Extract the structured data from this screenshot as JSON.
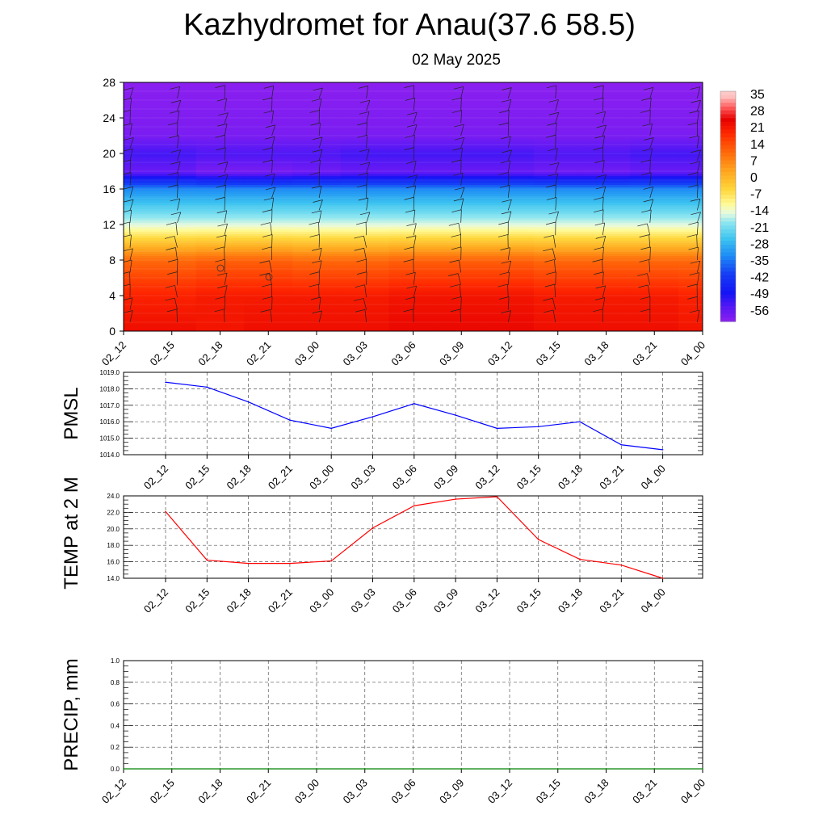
{
  "header": {
    "title": "Kazhydromet for Anau(37.6 58.5)",
    "date": "02 May 2025"
  },
  "chart_data": [
    {
      "type": "heatmap",
      "title": "",
      "x_categories": [
        "02_12",
        "02_15",
        "02_18",
        "02_21",
        "03_00",
        "03_03",
        "03_06",
        "03_09",
        "03_12",
        "03_15",
        "03_18",
        "03_21",
        "04_00"
      ],
      "y_ticks": [
        0,
        4,
        8,
        12,
        16,
        20,
        24,
        28
      ],
      "ylim": [
        0,
        28
      ],
      "colorbar": {
        "labels": [
          "35",
          "28",
          "21",
          "14",
          "7",
          "0",
          "-7",
          "-14",
          "-21",
          "-28",
          "-35",
          "-42",
          "-49",
          "-56"
        ],
        "range": [
          -60,
          38
        ]
      },
      "level_values": [
        {
          "level": 0,
          "values": [
            24,
            24,
            23,
            24,
            24,
            24,
            25,
            25,
            25,
            24,
            24,
            24,
            23
          ]
        },
        {
          "level": 4,
          "values": [
            21,
            21,
            22,
            22,
            22,
            22,
            23,
            23,
            23,
            22,
            22,
            22,
            21
          ]
        },
        {
          "level": 8,
          "values": [
            12,
            12,
            13,
            13,
            12,
            12,
            13,
            13,
            13,
            12,
            12,
            12,
            12
          ]
        },
        {
          "level": 12,
          "values": [
            -14,
            -14,
            -14,
            -14,
            -14,
            -14,
            -14,
            -14,
            -14,
            -14,
            -14,
            -14,
            -14
          ]
        },
        {
          "level": 16,
          "values": [
            -32,
            -32,
            -32,
            -32,
            -32,
            -32,
            -32,
            -32,
            -32,
            -32,
            -32,
            -32,
            -32
          ]
        },
        {
          "level": 18,
          "values": [
            -56,
            -56,
            -58,
            -58,
            -57,
            -56,
            -56,
            -56,
            -56,
            -57,
            -57,
            -56,
            -56
          ]
        },
        {
          "level": 20,
          "values": [
            -52,
            -52,
            -53,
            -53,
            -53,
            -52,
            -52,
            -52,
            -52,
            -53,
            -53,
            -52,
            -52
          ]
        },
        {
          "level": 22,
          "values": [
            -58,
            -58,
            -58,
            -58,
            -58,
            -58,
            -58,
            -58,
            -58,
            -58,
            -58,
            -58,
            -58
          ]
        },
        {
          "level": 28,
          "values": [
            -60,
            -60,
            -60,
            -60,
            -60,
            -60,
            -60,
            -60,
            -60,
            -60,
            -60,
            -60,
            -60
          ]
        }
      ],
      "grid": false
    },
    {
      "type": "line",
      "ylabel": "PMSL",
      "x": [
        "02_12",
        "02_15",
        "02_18",
        "02_21",
        "03_00",
        "03_03",
        "03_06",
        "03_09",
        "03_12",
        "03_15",
        "03_18",
        "03_21",
        "04_00"
      ],
      "y_ticks": [
        "1014.0",
        "1015.0",
        "1016.0",
        "1017.0",
        "1018.0",
        "1019.0"
      ],
      "ylim": [
        1014,
        1019
      ],
      "series": [
        {
          "values": [
            1018.4,
            1018.1,
            1017.2,
            1016.1,
            1015.6,
            1016.3,
            1017.1,
            1016.4,
            1015.6,
            1015.7,
            1016.0,
            1014.6,
            1014.3
          ],
          "color": "#0000ff"
        }
      ],
      "grid": true
    },
    {
      "type": "line",
      "ylabel": "TEMP at 2 M",
      "x": [
        "02_12",
        "02_15",
        "02_18",
        "02_21",
        "03_00",
        "03_03",
        "03_06",
        "03_09",
        "03_12",
        "03_15",
        "03_18",
        "03_21",
        "04_00"
      ],
      "y_ticks": [
        "14.0",
        "16.0",
        "18.0",
        "20.0",
        "22.0",
        "24.0"
      ],
      "ylim": [
        14,
        24
      ],
      "series": [
        {
          "values": [
            22.1,
            16.2,
            15.8,
            15.8,
            16.1,
            20.1,
            22.8,
            23.6,
            23.9,
            18.7,
            16.3,
            15.6,
            14.0
          ],
          "color": "#ff0000"
        }
      ],
      "grid": true
    },
    {
      "type": "line",
      "ylabel": "PRECIP, mm",
      "x": [
        "02_12",
        "02_15",
        "02_18",
        "02_21",
        "03_00",
        "03_03",
        "03_06",
        "03_09",
        "03_12",
        "03_15",
        "03_18",
        "03_21",
        "04_00"
      ],
      "y_ticks": [
        "0.0",
        "0.2",
        "0.4",
        "0.6",
        "0.8",
        "1.0"
      ],
      "ylim": [
        0,
        1
      ],
      "series": [
        {
          "values": [
            0,
            0,
            0,
            0,
            0,
            0,
            0,
            0,
            0,
            0,
            0,
            0,
            0
          ],
          "color": "#008000"
        }
      ],
      "grid": true
    }
  ]
}
